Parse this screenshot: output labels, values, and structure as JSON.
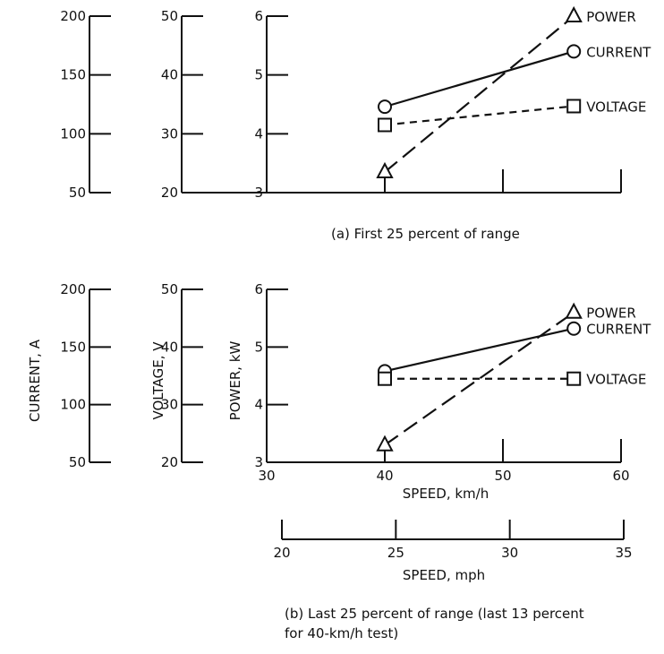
{
  "chart_data": [
    {
      "type": "line",
      "caption": "(a) First 25 percent of range",
      "x": [
        40,
        56
      ],
      "series": [
        {
          "name": "POWER",
          "unit": "kW",
          "values": [
            3.35,
            6.0
          ],
          "marker": "triangle",
          "dash": "long"
        },
        {
          "name": "CURRENT",
          "unit": "A",
          "values": [
            123,
            170
          ],
          "marker": "circle",
          "dash": "solid"
        },
        {
          "name": "VOLTAGE",
          "unit": "V",
          "values": [
            31.5,
            34.7
          ],
          "marker": "square",
          "dash": "short"
        }
      ],
      "axes": {
        "current": {
          "label": "CURRENT, A",
          "ticks": [
            "200",
            "150",
            "100",
            "50"
          ],
          "ylim": [
            50,
            200
          ]
        },
        "voltage": {
          "label": "VOLTAGE, V",
          "ticks": [
            "50",
            "40",
            "30",
            "20"
          ],
          "ylim": [
            20,
            50
          ]
        },
        "power": {
          "label": "POWER, kW",
          "ticks": [
            "6",
            "5",
            "4",
            "3"
          ],
          "ylim": [
            3,
            6
          ]
        }
      },
      "xlim": [
        30,
        60
      ]
    },
    {
      "type": "line",
      "caption": "(b) Last 25 percent of range (last 13 percent\nfor 40-km/h test)",
      "x": [
        40,
        56
      ],
      "series": [
        {
          "name": "POWER",
          "unit": "kW",
          "values": [
            3.3,
            5.6
          ],
          "marker": "triangle",
          "dash": "long"
        },
        {
          "name": "CURRENT",
          "unit": "A",
          "values": [
            129,
            166
          ],
          "marker": "circle",
          "dash": "solid"
        },
        {
          "name": "VOLTAGE",
          "unit": "V",
          "values": [
            34.5,
            34.5
          ],
          "marker": "square",
          "dash": "short"
        }
      ],
      "axes": {
        "current": {
          "label": "CURRENT, A",
          "ticks": [
            "200",
            "150",
            "100",
            "50"
          ],
          "ylim": [
            50,
            200
          ]
        },
        "voltage": {
          "label": "VOLTAGE, V",
          "ticks": [
            "50",
            "40",
            "30",
            "20"
          ],
          "ylim": [
            20,
            50
          ]
        },
        "power": {
          "label": "POWER, kW",
          "ticks": [
            "6",
            "5",
            "4",
            "3"
          ],
          "ylim": [
            3,
            6
          ]
        }
      },
      "xlabel_kmh": "SPEED, km/h",
      "xticks_kmh": [
        "30",
        "40",
        "50",
        "60"
      ],
      "xlabel_mph": "SPEED, mph",
      "xticks_mph": [
        "20",
        "25",
        "30",
        "35"
      ],
      "xlim_kmh": [
        30,
        60
      ],
      "xlim_mph": [
        20,
        35
      ]
    }
  ]
}
